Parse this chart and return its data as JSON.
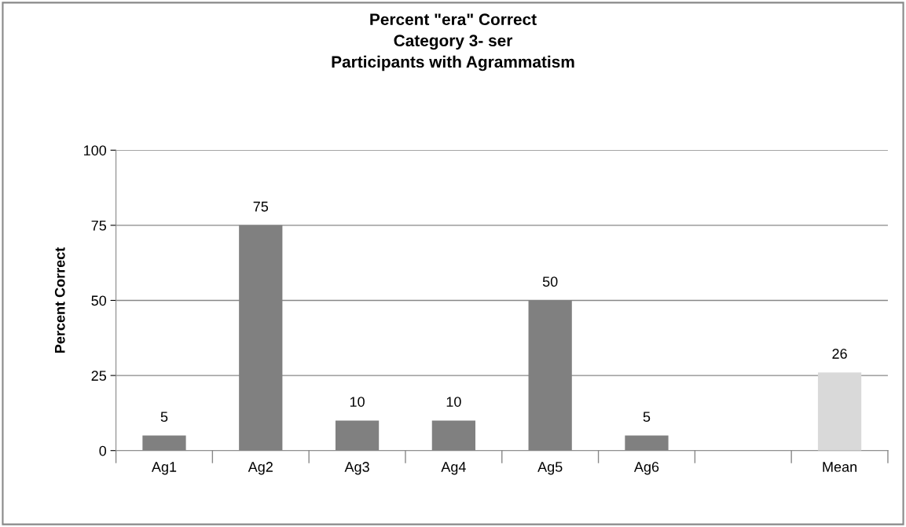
{
  "chart_data": {
    "type": "bar",
    "title": "Percent \"era\" Correct\nCategory 3- ser\nParticipants with Agrammatism",
    "ylabel": "Percent Correct",
    "categories": [
      "Ag1",
      "Ag2",
      "Ag3",
      "Ag4",
      "Ag5",
      "Ag6",
      null,
      "Mean"
    ],
    "values": [
      5,
      75,
      10,
      10,
      50,
      5,
      null,
      26
    ],
    "colors": [
      "#808080",
      "#808080",
      "#808080",
      "#808080",
      "#808080",
      "#808080",
      "#808080",
      "#d9d9d9"
    ],
    "ylim": [
      0,
      100
    ],
    "yticks": [
      0,
      25,
      50,
      75,
      100
    ],
    "grid": "y",
    "data_labels": true
  }
}
